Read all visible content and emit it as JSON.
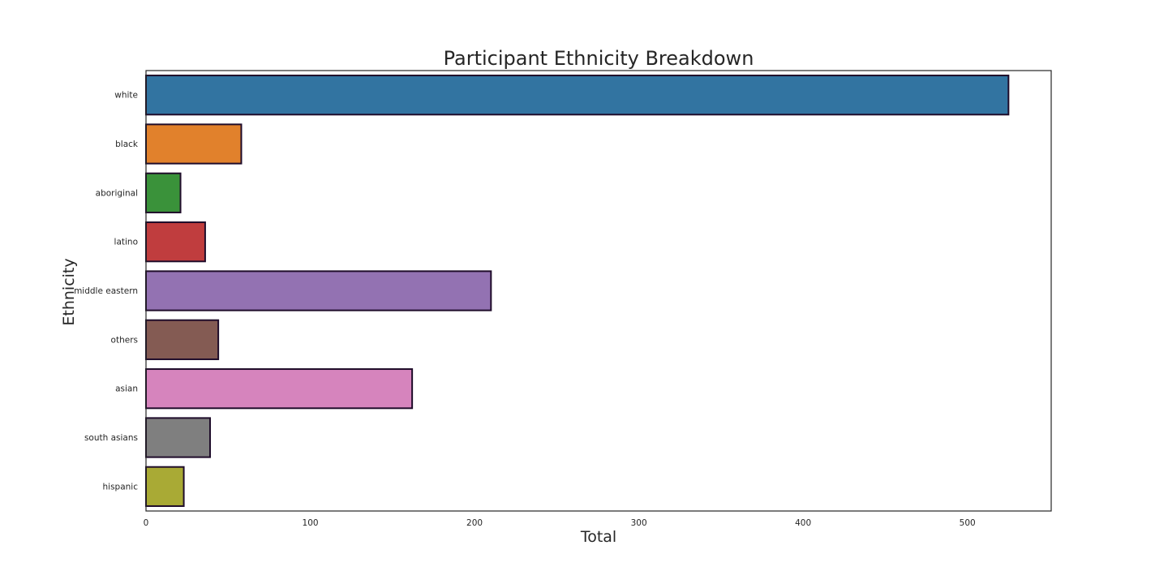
{
  "chart_data": {
    "type": "bar",
    "orientation": "horizontal",
    "title": "Participant Ethnicity Breakdown",
    "xlabel": "Total",
    "ylabel": "Ethnicity",
    "categories": [
      "white",
      "black",
      "aboriginal",
      "latino",
      "middle eastern",
      "others",
      "asian",
      "south asians",
      "hispanic"
    ],
    "values": [
      525,
      58,
      21,
      36,
      210,
      44,
      162,
      39,
      23
    ],
    "colors": [
      "#3274a1",
      "#e1812c",
      "#3a923a",
      "#c03d3e",
      "#9372b2",
      "#845b53",
      "#d684bd",
      "#7f7f7f",
      "#a9aa35"
    ],
    "edge_color": "#1f0c2a",
    "xlim": [
      0,
      551
    ],
    "xticks": [
      0,
      100,
      200,
      300,
      400,
      500
    ],
    "grid": false,
    "legend": "none"
  }
}
